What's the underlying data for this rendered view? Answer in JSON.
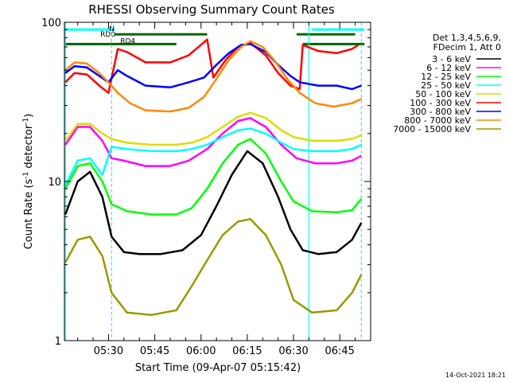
{
  "chart_data": {
    "type": "line",
    "title": "RHESSI Observing Summary Count Rates",
    "xlabel": "Start Time (09-Apr-07 05:15:42)",
    "ylabel": "Count Rate (s",
    "ylabel_sup": "-1",
    "ylabel_tail": " detector",
    "ylabel_sup2": "-1",
    "ylabel_end": ")",
    "y_scale": "log",
    "ylim": [
      1,
      100
    ],
    "xlim": [
      "05:15:42",
      "06:55:00"
    ],
    "x_ticks": [
      "05:30",
      "05:45",
      "06:00",
      "06:15",
      "06:30",
      "06:45"
    ],
    "y_ticks": [
      "1",
      "10",
      "100"
    ],
    "legend_header": [
      "Det 1,3,4,5,6,9,",
      "FDecim 1, Att 0"
    ],
    "legend_position": "right",
    "series": [
      {
        "name": "3 - 6 keV",
        "color": "#000000",
        "points": [
          [
            "05:16",
            6.2
          ],
          [
            "05:20",
            10
          ],
          [
            "05:24",
            11.5
          ],
          [
            "05:28",
            8
          ],
          [
            "05:31",
            4.5
          ],
          [
            "05:35",
            3.6
          ],
          [
            "05:40",
            3.5
          ],
          [
            "05:47",
            3.5
          ],
          [
            "05:54",
            3.7
          ],
          [
            "06:00",
            4.6
          ],
          [
            "06:05",
            7
          ],
          [
            "06:10",
            11
          ],
          [
            "06:15",
            15.5
          ],
          [
            "06:20",
            13
          ],
          [
            "06:25",
            8
          ],
          [
            "06:29",
            5
          ],
          [
            "06:33",
            3.7
          ],
          [
            "06:38",
            3.5
          ],
          [
            "06:44",
            3.6
          ],
          [
            "06:49",
            4.3
          ],
          [
            "06:52",
            5.5
          ]
        ]
      },
      {
        "name": "6 - 12 keV",
        "color": "#ff00ff",
        "points": [
          [
            "05:16",
            17
          ],
          [
            "05:20",
            22
          ],
          [
            "05:24",
            22
          ],
          [
            "05:28",
            18
          ],
          [
            "05:31",
            14
          ],
          [
            "05:35",
            13.5
          ],
          [
            "05:42",
            12.5
          ],
          [
            "05:50",
            12.5
          ],
          [
            "05:56",
            13.5
          ],
          [
            "06:02",
            16
          ],
          [
            "06:07",
            20
          ],
          [
            "06:12",
            24
          ],
          [
            "06:16",
            25
          ],
          [
            "06:21",
            22
          ],
          [
            "06:26",
            17
          ],
          [
            "06:31",
            14
          ],
          [
            "06:37",
            13
          ],
          [
            "06:44",
            13
          ],
          [
            "06:49",
            13.5
          ],
          [
            "06:52",
            14.5
          ]
        ]
      },
      {
        "name": "12 - 25 keV",
        "color": "#00ff00",
        "points": [
          [
            "05:16",
            9
          ],
          [
            "05:20",
            12.5
          ],
          [
            "05:24",
            13
          ],
          [
            "05:28",
            10
          ],
          [
            "05:31",
            7.2
          ],
          [
            "05:36",
            6.5
          ],
          [
            "05:44",
            6.2
          ],
          [
            "05:52",
            6.2
          ],
          [
            "05:57",
            6.8
          ],
          [
            "06:02",
            9
          ],
          [
            "06:07",
            13
          ],
          [
            "06:12",
            17
          ],
          [
            "06:16",
            18.5
          ],
          [
            "06:21",
            15
          ],
          [
            "06:26",
            10
          ],
          [
            "06:30",
            7.5
          ],
          [
            "06:36",
            6.5
          ],
          [
            "06:44",
            6.4
          ],
          [
            "06:49",
            6.6
          ],
          [
            "06:52",
            7.8
          ]
        ]
      },
      {
        "name": "25 - 50 keV",
        "color": "#00ffff",
        "points": [
          [
            "05:16",
            9.5
          ],
          [
            "05:20",
            13.5
          ],
          [
            "05:24",
            14
          ],
          [
            "05:28",
            11
          ],
          [
            "05:31",
            16.5
          ],
          [
            "05:36",
            16
          ],
          [
            "05:44",
            15.5
          ],
          [
            "05:52",
            15.5
          ],
          [
            "05:57",
            16
          ],
          [
            "06:02",
            17
          ],
          [
            "06:07",
            19
          ],
          [
            "06:12",
            21
          ],
          [
            "06:16",
            21.5
          ],
          [
            "06:21",
            20
          ],
          [
            "06:26",
            17.5
          ],
          [
            "06:30",
            16
          ],
          [
            "06:36",
            15.5
          ],
          [
            "06:44",
            15.5
          ],
          [
            "06:49",
            16
          ],
          [
            "06:52",
            17
          ]
        ]
      },
      {
        "name": "50 - 100 keV",
        "color": "#dddd00",
        "points": [
          [
            "05:16",
            18
          ],
          [
            "05:20",
            23
          ],
          [
            "05:24",
            23
          ],
          [
            "05:28",
            20
          ],
          [
            "05:31",
            18.5
          ],
          [
            "05:36",
            17.5
          ],
          [
            "05:44",
            17
          ],
          [
            "05:52",
            17
          ],
          [
            "05:57",
            17.5
          ],
          [
            "06:02",
            19
          ],
          [
            "06:07",
            22
          ],
          [
            "06:12",
            25.5
          ],
          [
            "06:16",
            27
          ],
          [
            "06:21",
            25
          ],
          [
            "06:26",
            21
          ],
          [
            "06:30",
            19
          ],
          [
            "06:36",
            18
          ],
          [
            "06:44",
            18
          ],
          [
            "06:49",
            18.5
          ],
          [
            "06:52",
            19.5
          ]
        ]
      },
      {
        "name": "100 - 300 keV",
        "color": "#ff0000",
        "points": [
          [
            "05:16",
            42
          ],
          [
            "05:19",
            48
          ],
          [
            "05:23",
            47
          ],
          [
            "05:27",
            40
          ],
          [
            "05:30",
            36
          ],
          [
            "05:33",
            68
          ],
          [
            "05:36",
            65
          ],
          [
            "05:42",
            56
          ],
          [
            "05:50",
            56
          ],
          [
            "05:56",
            62
          ],
          [
            "06:01",
            75
          ],
          [
            "06:02",
            78
          ],
          [
            "06:04",
            45
          ],
          [
            "06:08",
            58
          ],
          [
            "06:12",
            70
          ],
          [
            "06:16",
            74
          ],
          [
            "06:21",
            62
          ],
          [
            "06:25",
            48
          ],
          [
            "06:29",
            40
          ],
          [
            "06:32",
            38
          ],
          [
            "06:33",
            72
          ],
          [
            "06:38",
            66
          ],
          [
            "06:44",
            64
          ],
          [
            "06:49",
            68
          ],
          [
            "06:51",
            72
          ]
        ]
      },
      {
        "name": "300 - 800 keV",
        "color": "#0000ff",
        "points": [
          [
            "05:16",
            48
          ],
          [
            "05:19",
            53
          ],
          [
            "05:23",
            52
          ],
          [
            "05:27",
            46
          ],
          [
            "05:30",
            42
          ],
          [
            "05:33",
            50
          ],
          [
            "05:36",
            46
          ],
          [
            "05:42",
            40
          ],
          [
            "05:50",
            39
          ],
          [
            "05:56",
            42
          ],
          [
            "06:01",
            45
          ],
          [
            "06:05",
            54
          ],
          [
            "06:09",
            64
          ],
          [
            "06:13",
            72
          ],
          [
            "06:16",
            73
          ],
          [
            "06:21",
            65
          ],
          [
            "06:25",
            54
          ],
          [
            "06:29",
            46
          ],
          [
            "06:32",
            42
          ],
          [
            "06:38",
            40
          ],
          [
            "06:44",
            40
          ],
          [
            "06:49",
            38
          ],
          [
            "06:52",
            40
          ]
        ]
      },
      {
        "name": "800 - 7000 keV",
        "color": "#ff8800",
        "points": [
          [
            "05:16",
            50
          ],
          [
            "05:19",
            56
          ],
          [
            "05:23",
            55
          ],
          [
            "05:27",
            48
          ],
          [
            "05:30",
            42
          ],
          [
            "05:33",
            36
          ],
          [
            "05:37",
            31
          ],
          [
            "05:42",
            28
          ],
          [
            "05:50",
            27.5
          ],
          [
            "05:56",
            29
          ],
          [
            "06:01",
            34
          ],
          [
            "06:05",
            44
          ],
          [
            "06:09",
            58
          ],
          [
            "06:13",
            70
          ],
          [
            "06:16",
            76
          ],
          [
            "06:20",
            70
          ],
          [
            "06:24",
            57
          ],
          [
            "06:28",
            44
          ],
          [
            "06:32",
            36
          ],
          [
            "06:37",
            31
          ],
          [
            "06:43",
            29.5
          ],
          [
            "06:49",
            31
          ],
          [
            "06:52",
            33
          ]
        ]
      },
      {
        "name": "7000 - 15000 keV",
        "color": "#999900",
        "points": [
          [
            "05:16",
            3.1
          ],
          [
            "05:20",
            4.3
          ],
          [
            "05:24",
            4.5
          ],
          [
            "05:28",
            3.4
          ],
          [
            "05:31",
            2
          ],
          [
            "05:36",
            1.5
          ],
          [
            "05:44",
            1.45
          ],
          [
            "05:52",
            1.55
          ],
          [
            "05:57",
            2.2
          ],
          [
            "06:02",
            3.2
          ],
          [
            "06:07",
            4.6
          ],
          [
            "06:12",
            5.6
          ],
          [
            "06:16",
            5.8
          ],
          [
            "06:21",
            4.6
          ],
          [
            "06:26",
            3
          ],
          [
            "06:30",
            1.8
          ],
          [
            "06:36",
            1.5
          ],
          [
            "06:44",
            1.55
          ],
          [
            "06:49",
            2
          ],
          [
            "06:52",
            2.6
          ]
        ]
      }
    ],
    "annotations": {
      "N": {
        "label": "N",
        "color": "#00ffff",
        "value": 90,
        "segments": [
          [
            "05:16",
            "05:32"
          ],
          [
            "06:36",
            "06:53"
          ]
        ]
      },
      "RD0": {
        "label": "RD0",
        "color": "#006600",
        "value": 73,
        "segments": [
          [
            "05:16",
            "05:52"
          ],
          [
            "06:33",
            "06:53"
          ]
        ]
      },
      "RD4": {
        "label": "RD4",
        "color": "#006600",
        "value": 84,
        "segments": [
          [
            "05:32",
            "06:02"
          ],
          [
            "06:31",
            "06:50"
          ]
        ]
      }
    },
    "vertical_markers": [
      {
        "x": "05:16",
        "color": "#00ffff",
        "style": "solid"
      },
      {
        "x": "05:31",
        "color": "#00ffff",
        "style": "dashed"
      },
      {
        "x": "06:35",
        "color": "#00ffff",
        "style": "solid"
      },
      {
        "x": "06:52",
        "color": "#00ffff",
        "style": "dashed"
      }
    ]
  },
  "footer": {
    "timestamp": "14-Oct-2021 18:21"
  }
}
